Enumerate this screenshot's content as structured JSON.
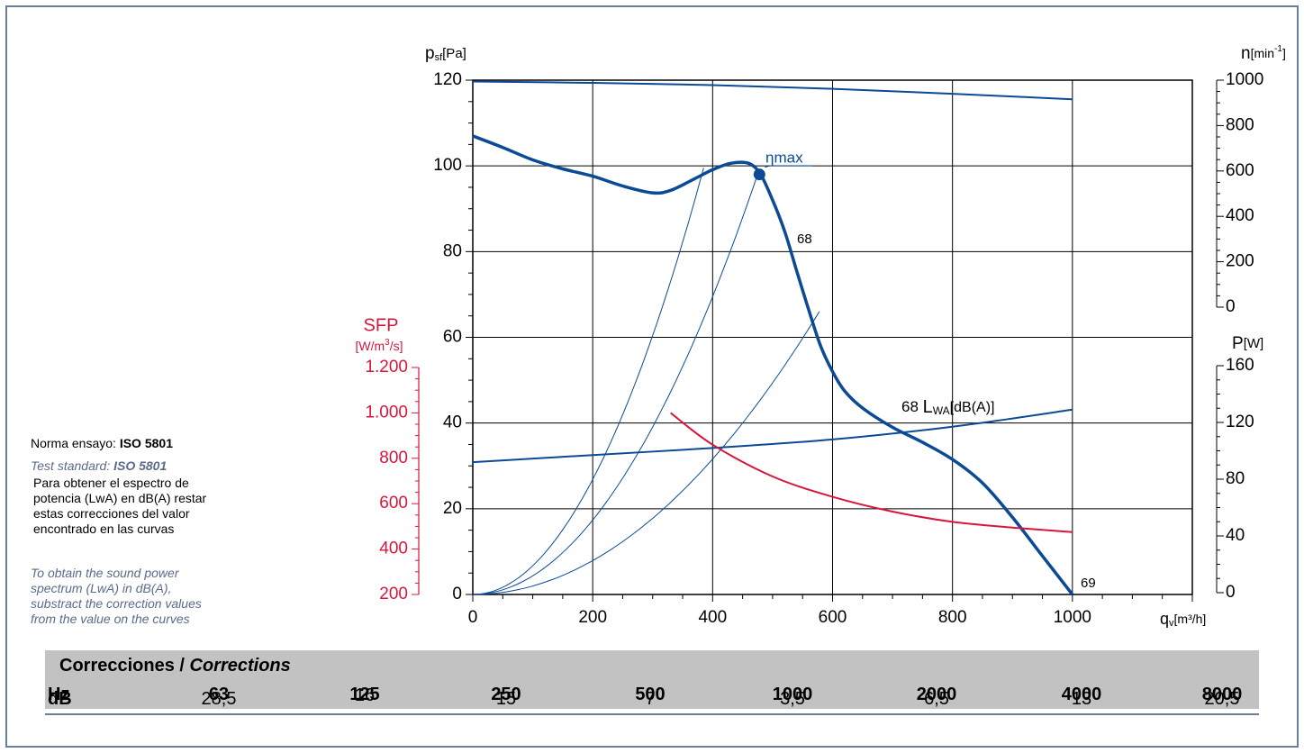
{
  "chart_data": {
    "type": "line",
    "x_axis": {
      "label_main": "q",
      "label_sub": "v",
      "label_unit": "[m³/h]",
      "range": [
        0,
        1000
      ],
      "ticks": [
        0,
        200,
        400,
        600,
        800,
        1000
      ]
    },
    "y_axis_left": {
      "label_main": "p",
      "label_sub": "sf",
      "label_unit": "[Pa]",
      "range": [
        0,
        120
      ],
      "ticks": [
        0,
        20,
        40,
        60,
        80,
        100,
        120
      ]
    },
    "y_axis_rpm": {
      "label_main": "n",
      "label_unit_pre": "[min",
      "label_unit_sup": "-1",
      "label_unit_post": "]",
      "range": [
        0,
        1000
      ],
      "ticks": [
        0,
        200,
        400,
        600,
        800,
        1000
      ]
    },
    "y_axis_power": {
      "label_main": "P",
      "label_unit": "[W]",
      "range": [
        0,
        160
      ],
      "ticks": [
        0,
        40,
        80,
        120,
        160
      ]
    },
    "y_axis_sfp": {
      "label_main": "SFP",
      "label_unit_pre": "[W/m",
      "label_unit_sup": "3",
      "label_unit_post": "/s]",
      "range": [
        200,
        1200
      ],
      "ticks": [
        "200",
        "400",
        "600",
        "800",
        "1.000",
        "1.200"
      ],
      "color": "#d6173b"
    },
    "grid": true,
    "series": [
      {
        "name": "p_sf",
        "axis": "p_sf",
        "color": "#0b4a94",
        "x": [
          0,
          50,
          100,
          150,
          200,
          250,
          300,
          330,
          370,
          400,
          430,
          460,
          480,
          500,
          520,
          540,
          560,
          580,
          600,
          620,
          650,
          700,
          750,
          800,
          850,
          900,
          950,
          1000
        ],
        "y": [
          107,
          104.3,
          101.4,
          99.3,
          97.6,
          95.3,
          93.7,
          94.3,
          97.0,
          99.1,
          100.6,
          100.6,
          98,
          92,
          84.8,
          75.6,
          66.5,
          58,
          52,
          47.5,
          43.5,
          39,
          35.5,
          31.5,
          26,
          18,
          9,
          0
        ]
      },
      {
        "name": "n",
        "axis": "n",
        "color": "#0b4a94",
        "x": [
          0,
          200,
          400,
          600,
          800,
          1000
        ],
        "y": [
          994,
          988,
          978,
          962,
          940,
          916
        ]
      },
      {
        "name": "P",
        "axis": "P",
        "color": "#0b4a94",
        "x": [
          0,
          200,
          400,
          600,
          800,
          1000
        ],
        "y": [
          92,
          97,
          102,
          108,
          117,
          129
        ]
      },
      {
        "name": "SFP",
        "axis": "SFP",
        "color": "#d6173b",
        "x": [
          330,
          400,
          500,
          600,
          700,
          800,
          900,
          1000
        ],
        "y": [
          1000,
          860,
          720,
          630,
          565,
          520,
          495,
          475
        ]
      }
    ],
    "system_curves_peak": [
      [
        385,
        99.5
      ],
      [
        475,
        98
      ],
      [
        578,
        66
      ]
    ],
    "annotations": {
      "eta": "ηmax",
      "eta_point": [
        478,
        98
      ],
      "label_68_top": "68",
      "label_68_lwa": "68",
      "lwa_main": "L",
      "lwa_sub": "WA",
      "lwa_unit": "[dB(A)]",
      "label_69": "69"
    }
  },
  "notes": {
    "norma_prefix": "Norma ensayo: ",
    "norma_value": "ISO 5801",
    "test_prefix": "Test standard: ",
    "test_value": "ISO 5801",
    "spectrum_es": [
      "Para obtener el espectro de",
      "potencia (LwA) en dB(A) restar",
      "estas correcciones del valor",
      "encontrado en las curvas"
    ],
    "spectrum_en": [
      "To obtain the sound power",
      "spectrum (LwA) in dB(A),",
      "substract the correction values",
      "from the value on the curves"
    ]
  },
  "corrections": {
    "title_es": "Correcciones / ",
    "title_en": "Corrections",
    "hz_label": "Hz",
    "db_label": "dB",
    "hz": [
      "63",
      "125",
      "250",
      "500",
      "1000",
      "2000",
      "4000",
      "8000"
    ],
    "db": [
      "28,5",
      "16",
      "15",
      "7",
      "3,5",
      "6,5",
      "13",
      "20,5"
    ]
  }
}
